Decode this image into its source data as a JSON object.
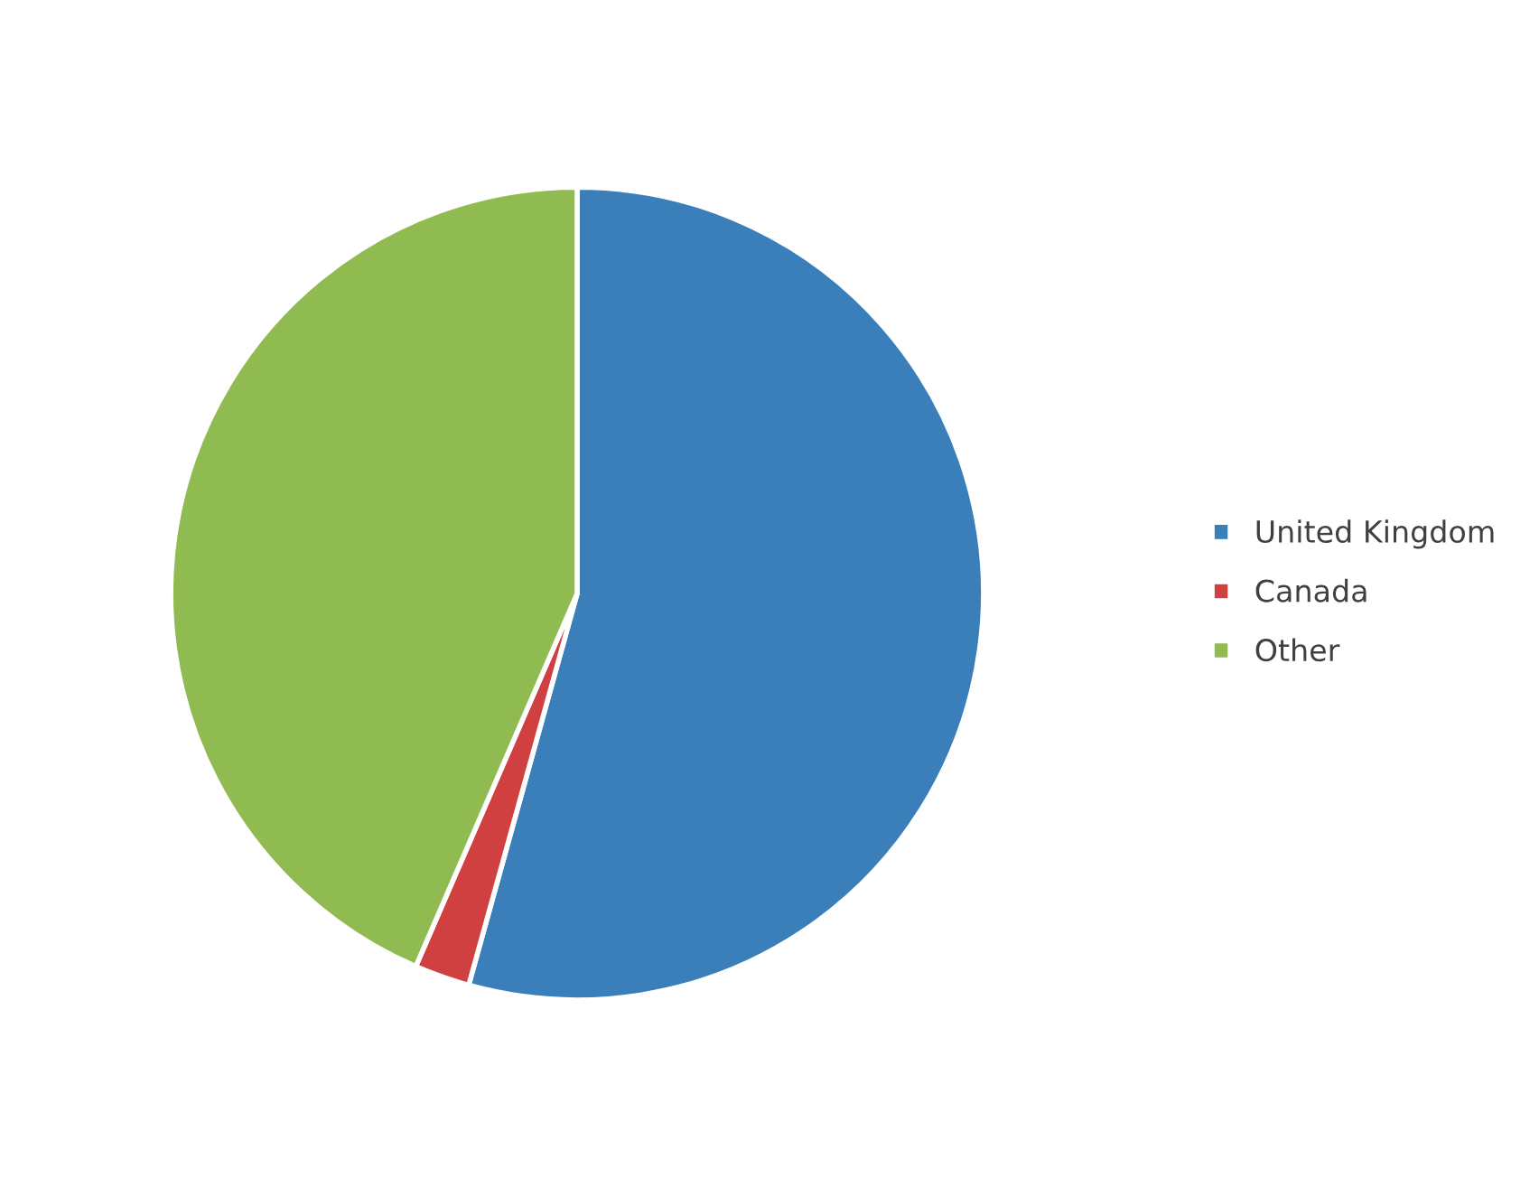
{
  "chart_data": {
    "type": "pie",
    "categories": [
      "United Kingdom",
      "Canada",
      "Other"
    ],
    "values": [
      54.3,
      2.2,
      43.5
    ],
    "colors": [
      "#3a7fba",
      "#d04040",
      "#8fbb50"
    ],
    "legend": "right"
  }
}
